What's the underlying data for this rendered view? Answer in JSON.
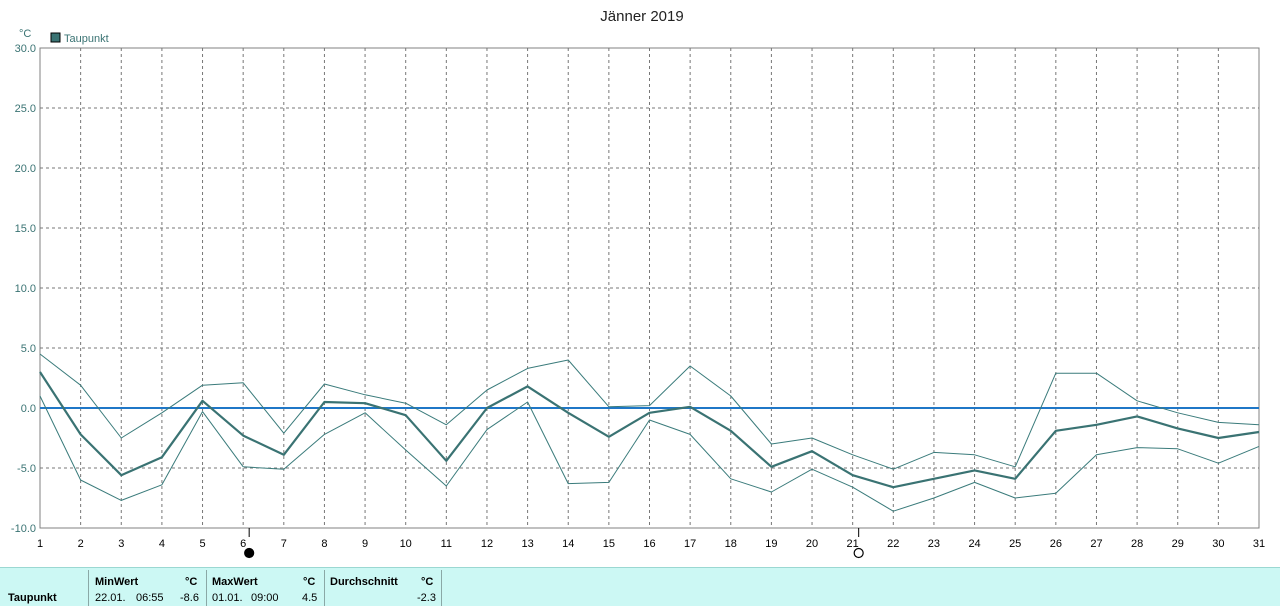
{
  "chart_data": {
    "type": "line",
    "title": "Jänner 2019",
    "unit": "°C",
    "legend": [
      "Taupunkt"
    ],
    "legend_position": "top-left",
    "x": [
      1,
      2,
      3,
      4,
      5,
      6,
      7,
      8,
      9,
      10,
      11,
      12,
      13,
      14,
      15,
      16,
      17,
      18,
      19,
      20,
      21,
      22,
      23,
      24,
      25,
      26,
      27,
      28,
      29,
      30,
      31
    ],
    "ylim": [
      -10,
      30
    ],
    "yticks": [
      "30.0",
      "25.0",
      "20.0",
      "15.0",
      "10.0",
      "5.0",
      "0.0",
      "-5.0",
      "-10.0"
    ],
    "grid": true,
    "reference_line": 0,
    "moon_phases": [
      {
        "x": 6,
        "phase": "full"
      },
      {
        "x": 21,
        "phase": "new"
      }
    ],
    "series": [
      {
        "name": "Taupunkt",
        "role": "avg",
        "values": [
          3.0,
          -2.2,
          -5.6,
          -4.1,
          0.6,
          -2.3,
          -3.9,
          0.5,
          0.4,
          -0.6,
          -4.4,
          0.0,
          1.8,
          -0.4,
          -2.4,
          -0.4,
          0.1,
          -1.9,
          -4.9,
          -3.6,
          -5.6,
          -6.6,
          -5.9,
          -5.2,
          -5.9,
          -1.9,
          -1.4,
          -0.7,
          -1.7,
          -2.5,
          -2.0
        ]
      },
      {
        "role": "max",
        "values": [
          4.5,
          1.9,
          -2.5,
          -0.4,
          1.9,
          2.1,
          -2.1,
          2.0,
          1.1,
          0.4,
          -1.4,
          1.5,
          3.3,
          4.0,
          0.1,
          0.2,
          3.5,
          1.0,
          -3.0,
          -2.5,
          -3.9,
          -5.1,
          -3.7,
          -3.9,
          -4.9,
          2.9,
          2.9,
          0.6,
          -0.4,
          -1.2,
          -1.4
        ]
      },
      {
        "role": "min",
        "values": [
          1.0,
          -6.0,
          -7.7,
          -6.4,
          -0.3,
          -4.9,
          -5.1,
          -2.2,
          -0.4,
          -3.5,
          -6.5,
          -1.8,
          0.5,
          -6.3,
          -6.2,
          -1.0,
          -2.2,
          -5.9,
          -7.0,
          -5.1,
          -6.6,
          -8.6,
          -7.5,
          -6.2,
          -7.5,
          -7.1,
          -3.9,
          -3.3,
          -3.4,
          -4.6,
          -3.2
        ]
      }
    ]
  },
  "stats": {
    "row_label": "Taupunkt",
    "min": {
      "header": "MinWert",
      "unit": "°C",
      "date": "22.01.",
      "time": "06:55",
      "value": "-8.6"
    },
    "max": {
      "header": "MaxWert",
      "unit": "°C",
      "date": "01.01.",
      "time": "09:00",
      "value": "4.5"
    },
    "avg": {
      "header": "Durchschnitt",
      "unit": "°C",
      "value": "-2.3"
    }
  },
  "colors": {
    "series": "#3a7373",
    "thin": "#3a7b7b",
    "zero": "#1f77c7",
    "grid": "#777777",
    "stats_bg": "#ccf8f4"
  }
}
